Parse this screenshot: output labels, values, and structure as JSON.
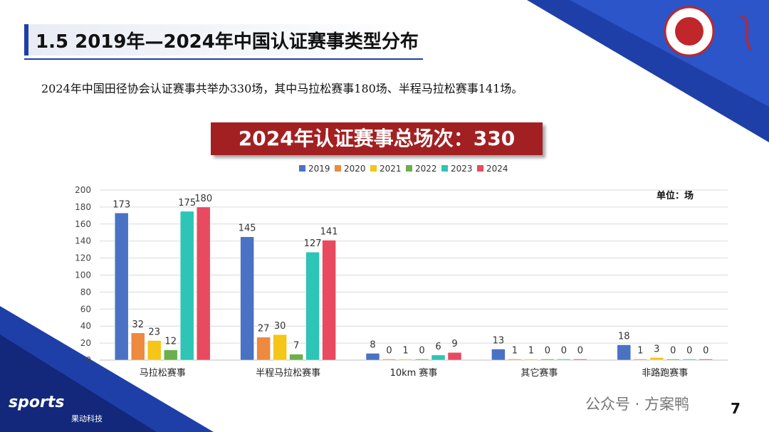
{
  "header": {
    "title": "1.5 2019年—2024年中国认证赛事类型分布"
  },
  "summary": "2024年中国田径协会认证赛事共举办330场，其中马拉松赛事180场、半程马拉松赛事141场。",
  "banner": "2024年认证赛事总场次：330",
  "unit_label": "单位：场",
  "page_number": "7",
  "footer": {
    "brand": "sports",
    "brand_sub": "果动科技",
    "watermark": "公众号 · 方案鸭"
  },
  "colors": {
    "accent_blue": "#1f3fa8",
    "banner_red": "#a32022"
  },
  "chart_data": {
    "type": "bar",
    "title": "",
    "xlabel": "",
    "ylabel": "",
    "ylim": [
      0,
      200
    ],
    "yticks": [
      0,
      20,
      40,
      60,
      80,
      100,
      120,
      140,
      160,
      180,
      200
    ],
    "grid": true,
    "legend_position": "top",
    "categories": [
      "马拉松赛事",
      "半程马拉松赛事",
      "10km 赛事",
      "其它赛事",
      "非路跑赛事"
    ],
    "series": [
      {
        "name": "2019",
        "color": "#4a72c4",
        "values": [
          173,
          145,
          8,
          13,
          18
        ]
      },
      {
        "name": "2020",
        "color": "#ed8a3f",
        "values": [
          32,
          27,
          0,
          1,
          1
        ]
      },
      {
        "name": "2021",
        "color": "#f5c518",
        "values": [
          23,
          30,
          1,
          1,
          3
        ]
      },
      {
        "name": "2022",
        "color": "#6ab04c",
        "values": [
          12,
          7,
          0,
          0,
          0
        ]
      },
      {
        "name": "2023",
        "color": "#2ec4b6",
        "values": [
          175,
          127,
          6,
          0,
          0
        ]
      },
      {
        "name": "2024",
        "color": "#e84a5f",
        "values": [
          180,
          141,
          9,
          0,
          0
        ]
      }
    ]
  }
}
